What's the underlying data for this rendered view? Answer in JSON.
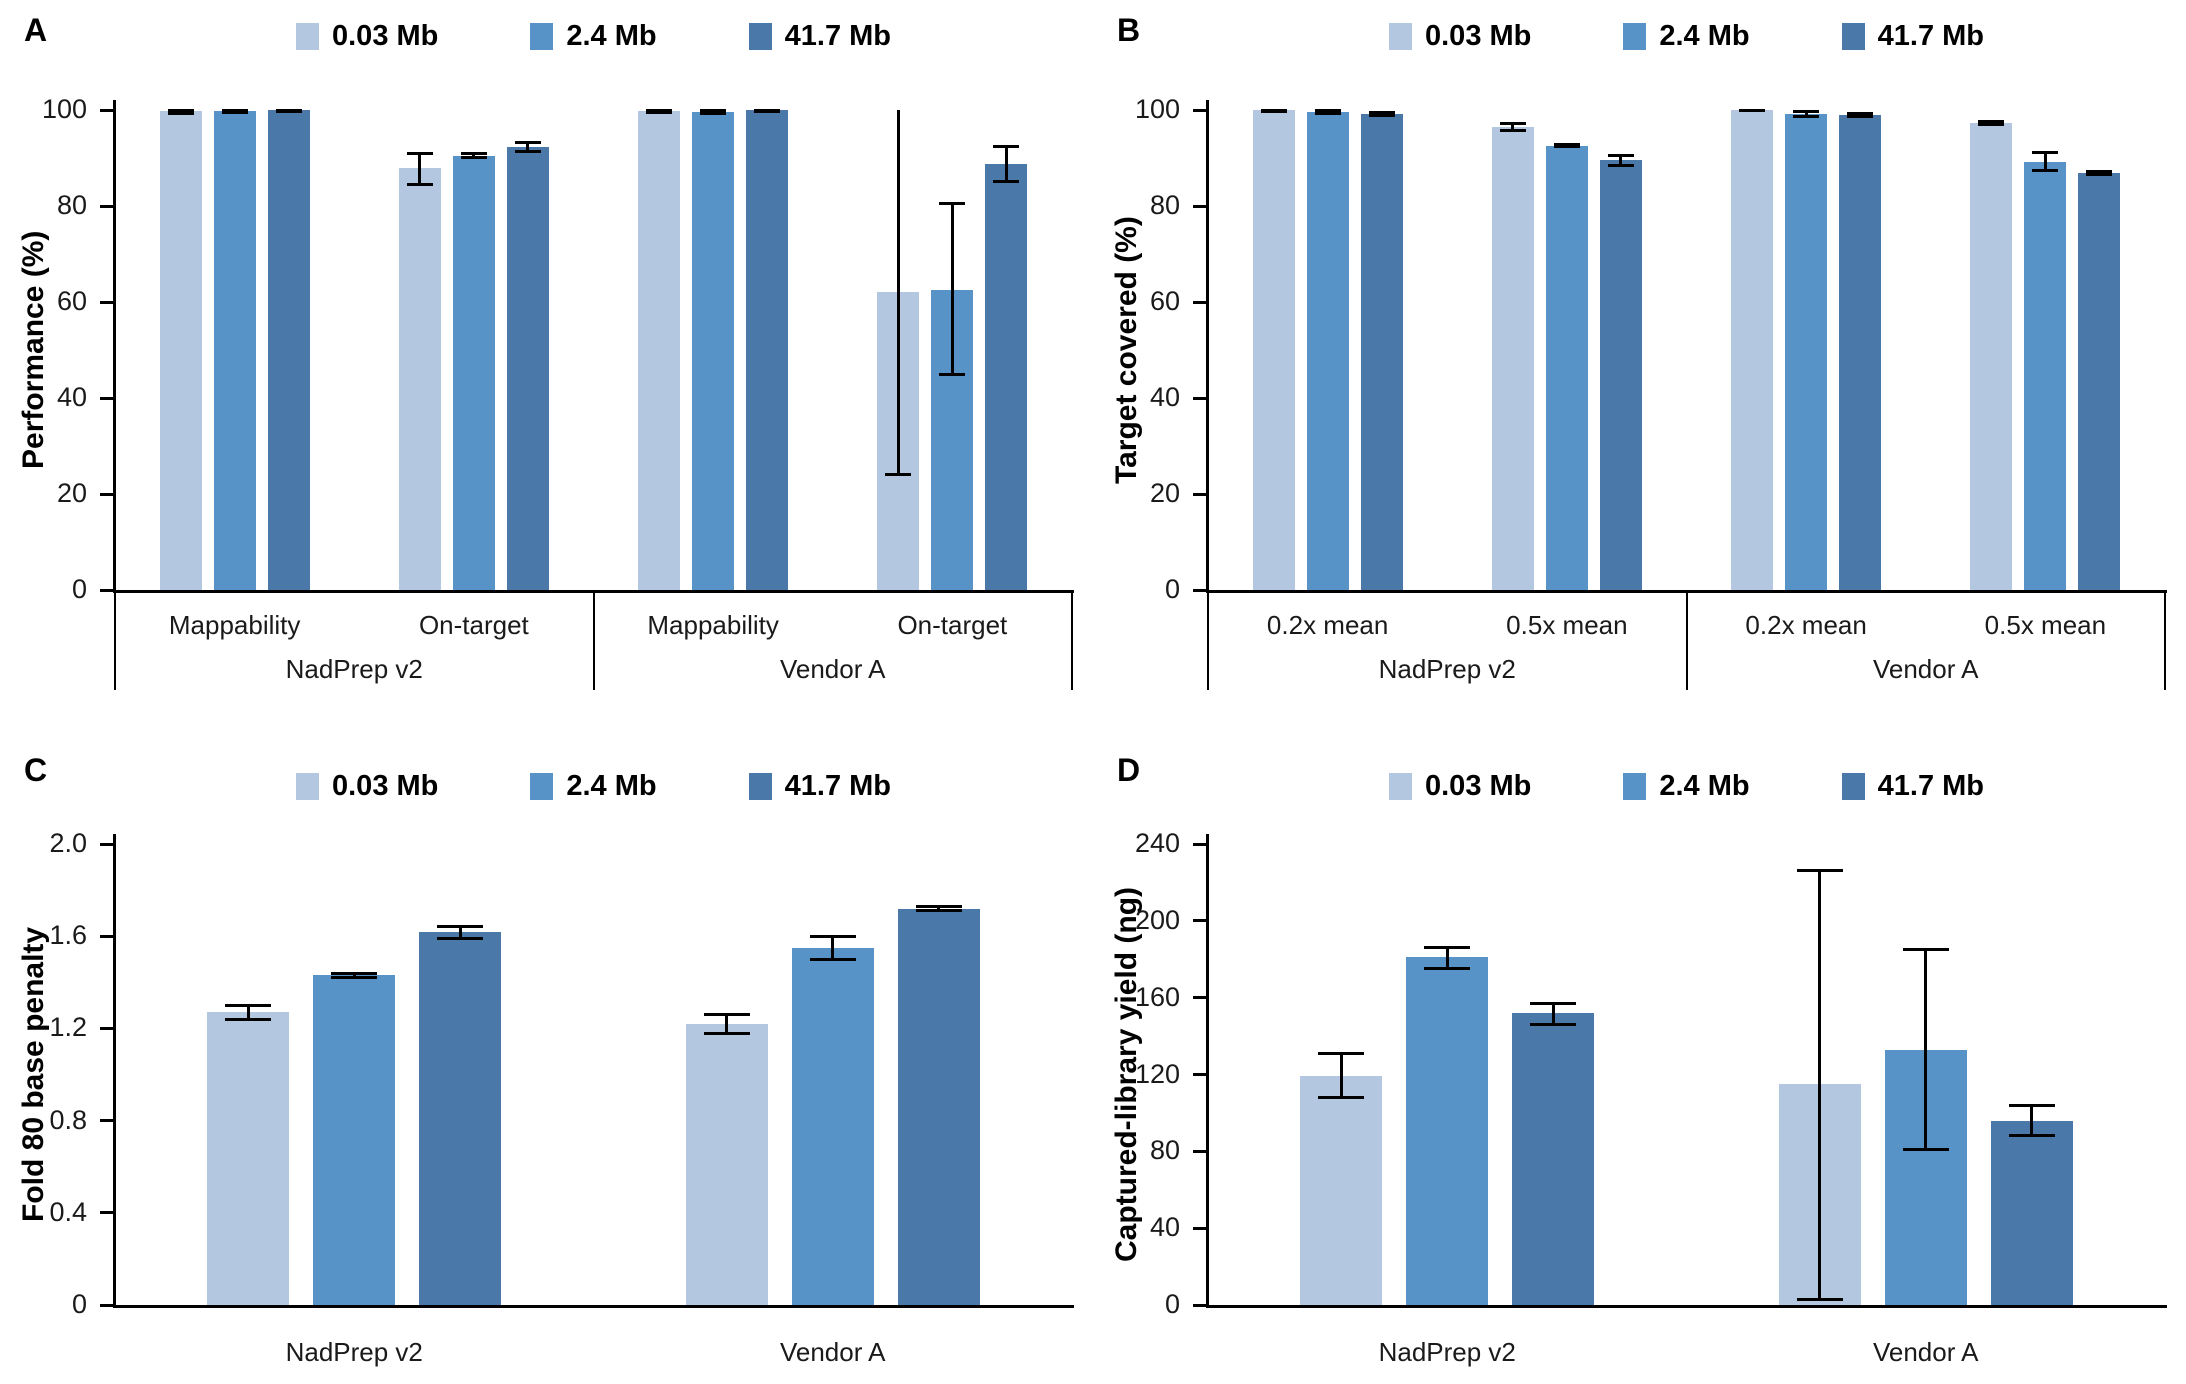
{
  "figure": {
    "legend": [
      {
        "label": "0.03 Mb",
        "color": "#b3c7e0"
      },
      {
        "label": "2.4 Mb",
        "color": "#5793c7"
      },
      {
        "label": "41.7 Mb",
        "color": "#4a78a8"
      }
    ],
    "error_bar_color": "#000000",
    "axis_color": "#000000"
  },
  "chart_data": [
    {
      "type": "bar",
      "panel": "A",
      "title": "",
      "ylabel": "Performance (%)",
      "xlabel": "",
      "ylim": [
        0,
        100
      ],
      "yticks": [
        "100",
        "80",
        "60",
        "40",
        "20",
        "0"
      ],
      "grid": false,
      "legend_position": "top",
      "legend_entries": [
        "0.03 Mb",
        "2.4 Mb",
        "41.7 Mb"
      ],
      "groups": [
        {
          "label": "NadPrep v2",
          "subgroups": [
            {
              "label": "Mappability",
              "values": [
                99.7,
                99.8,
                99.9
              ],
              "err_lo": [
                99.3,
                99.5,
                99.6
              ],
              "err_hi": [
                99.9,
                99.9,
                99.9
              ]
            },
            {
              "label": "On-target",
              "values": [
                88.0,
                90.5,
                92.3
              ],
              "err_lo": [
                84.5,
                90.1,
                91.3
              ],
              "err_hi": [
                91.0,
                91.0,
                93.3
              ]
            }
          ]
        },
        {
          "label": "Vendor A",
          "subgroups": [
            {
              "label": "Mappability",
              "values": [
                99.7,
                99.6,
                99.9
              ],
              "err_lo": [
                99.4,
                99.3,
                99.7
              ],
              "err_hi": [
                99.9,
                99.9,
                99.9
              ]
            },
            {
              "label": "On-target",
              "values": [
                62.0,
                62.5,
                88.8
              ],
              "err_lo": [
                24.0,
                45.0,
                85.2
              ],
              "err_hi": [
                100.0,
                80.5,
                92.4
              ]
            }
          ]
        }
      ]
    },
    {
      "type": "bar",
      "panel": "B",
      "title": "",
      "ylabel": "Target covered (%)",
      "xlabel": "",
      "ylim": [
        0,
        100
      ],
      "yticks": [
        "100",
        "80",
        "60",
        "40",
        "20",
        "0"
      ],
      "grid": false,
      "legend_position": "top",
      "legend_entries": [
        "0.03 Mb",
        "2.4 Mb",
        "41.7 Mb"
      ],
      "groups": [
        {
          "label": "NadPrep v2",
          "subgroups": [
            {
              "label": "0.2x mean",
              "values": [
                99.9,
                99.5,
                99.1
              ],
              "err_lo": [
                99.7,
                99.2,
                98.8
              ],
              "err_hi": [
                99.9,
                99.8,
                99.4
              ]
            },
            {
              "label": "0.5x mean",
              "values": [
                96.5,
                92.6,
                89.5
              ],
              "err_lo": [
                95.8,
                92.3,
                88.5
              ],
              "err_hi": [
                97.2,
                92.9,
                90.5
              ]
            }
          ]
        },
        {
          "label": "Vendor A",
          "subgroups": [
            {
              "label": "0.2x mean",
              "values": [
                99.9,
                99.2,
                98.9
              ],
              "err_lo": [
                99.8,
                98.7,
                98.6
              ],
              "err_hi": [
                99.9,
                99.7,
                99.2
              ]
            },
            {
              "label": "0.5x mean",
              "values": [
                97.3,
                89.2,
                86.8
              ],
              "err_lo": [
                96.9,
                87.3,
                86.5
              ],
              "err_hi": [
                97.7,
                91.1,
                87.1
              ]
            }
          ]
        }
      ]
    },
    {
      "type": "bar",
      "panel": "C",
      "title": "",
      "ylabel": "Fold 80 base penalty",
      "xlabel": "",
      "ylim": [
        0,
        2.0
      ],
      "yticks": [
        "2.0",
        "1.6",
        "1.2",
        "0.8",
        "0.4",
        "0"
      ],
      "grid": false,
      "legend_position": "top",
      "legend_entries": [
        "0.03 Mb",
        "2.4 Mb",
        "41.7 Mb"
      ],
      "groups": [
        {
          "label": "NadPrep v2",
          "subgroups": [
            {
              "label": "",
              "values": [
                1.27,
                1.43,
                1.62
              ],
              "err_lo": [
                1.24,
                1.42,
                1.59
              ],
              "err_hi": [
                1.3,
                1.44,
                1.64
              ]
            }
          ]
        },
        {
          "label": "Vendor A",
          "subgroups": [
            {
              "label": "",
              "values": [
                1.22,
                1.55,
                1.72
              ],
              "err_lo": [
                1.18,
                1.5,
                1.71
              ],
              "err_hi": [
                1.26,
                1.6,
                1.73
              ]
            }
          ]
        }
      ]
    },
    {
      "type": "bar",
      "panel": "D",
      "title": "",
      "ylabel": "Captured-library yield (ng)",
      "xlabel": "",
      "ylim": [
        0,
        240
      ],
      "yticks": [
        "240",
        "200",
        "160",
        "120",
        "80",
        "40",
        "0"
      ],
      "grid": false,
      "legend_position": "top",
      "legend_entries": [
        "0.03 Mb",
        "2.4 Mb",
        "41.7 Mb"
      ],
      "groups": [
        {
          "label": "NadPrep v2",
          "subgroups": [
            {
              "label": "",
              "values": [
                119,
                181,
                152
              ],
              "err_lo": [
                108,
                175,
                146
              ],
              "err_hi": [
                131,
                186,
                157
              ]
            }
          ]
        },
        {
          "label": "Vendor A",
          "subgroups": [
            {
              "label": "",
              "values": [
                115,
                133,
                96
              ],
              "err_lo": [
                3,
                81,
                88
              ],
              "err_hi": [
                226,
                185,
                104
              ]
            }
          ]
        }
      ]
    }
  ]
}
